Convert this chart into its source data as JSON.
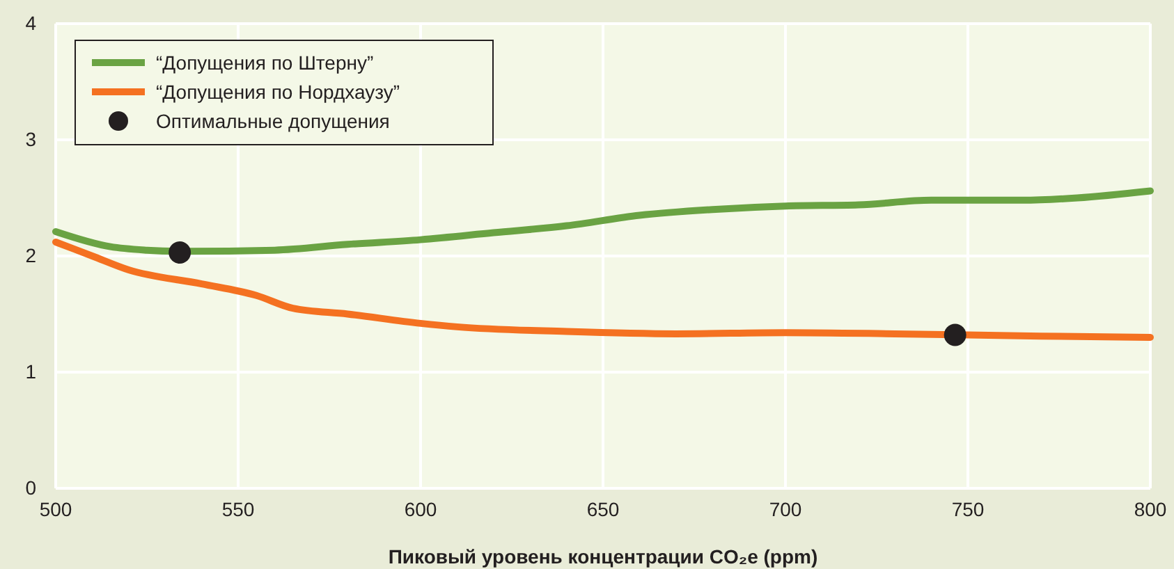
{
  "chart_data": {
    "type": "line",
    "xlabel": "Пиковый уровень концентрации CO₂e (ppm)",
    "xlim": [
      500,
      800
    ],
    "xticks": [
      500,
      550,
      600,
      650,
      700,
      750,
      800
    ],
    "ylim": [
      0,
      4
    ],
    "yticks": [
      0,
      1,
      2,
      3,
      4
    ],
    "grid": true,
    "legend": "top left",
    "line_style": "solid",
    "marker": "none",
    "series": [
      {
        "name": "“Допущения по Штерну”",
        "color": "#6aa343",
        "x": [
          500,
          515,
          525,
          535,
          560,
          580,
          600,
          620,
          640,
          660,
          680,
          700,
          720,
          740,
          765,
          780,
          800
        ],
        "values": [
          2.21,
          2.08,
          2.05,
          2.04,
          2.05,
          2.1,
          2.14,
          2.2,
          2.26,
          2.35,
          2.4,
          2.43,
          2.44,
          2.48,
          2.48,
          2.5,
          2.56
        ]
      },
      {
        "name": "“Допущения по Нордхаузу”",
        "color": "#f47121",
        "x": [
          500,
          510,
          520,
          540,
          555,
          565,
          580,
          600,
          610,
          640,
          670,
          700,
          730,
          770,
          800
        ],
        "values": [
          2.12,
          2.0,
          1.88,
          1.76,
          1.66,
          1.55,
          1.5,
          1.42,
          1.39,
          1.35,
          1.33,
          1.34,
          1.33,
          1.31,
          1.3
        ]
      },
      {
        "name": "Оптимальные допущения",
        "type": "scatter",
        "marker": "circle",
        "color": "#231f20",
        "x": [
          534,
          746.5
        ],
        "values": [
          2.03,
          1.32
        ]
      }
    ]
  }
}
